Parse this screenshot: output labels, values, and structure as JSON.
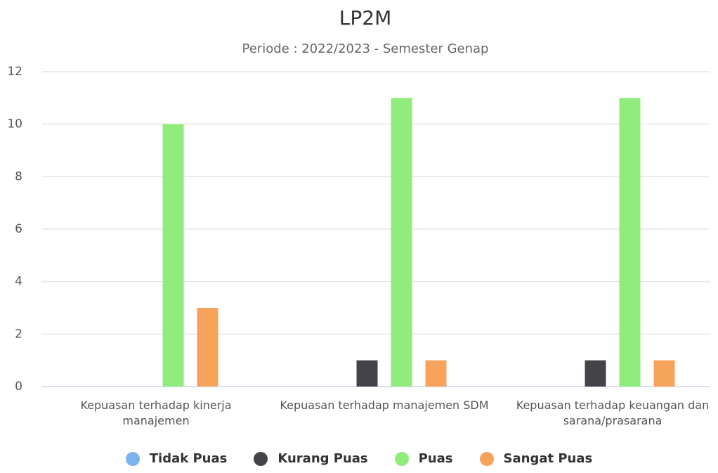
{
  "chart_data": {
    "type": "bar",
    "title": "LP2M",
    "subtitle": "Periode : 2022/2023 - Semester Genap",
    "categories": [
      "Kepuasan terhadap kinerja manajemen",
      "Kepuasan terhadap manajemen SDM",
      "Kepuasan terhadap keuangan dan sarana/prasarana"
    ],
    "series": [
      {
        "name": "Tidak Puas",
        "color": "#7cb5ec",
        "values": [
          0,
          0,
          0
        ]
      },
      {
        "name": "Kurang Puas",
        "color": "#434348",
        "values": [
          0,
          1,
          1
        ]
      },
      {
        "name": "Puas",
        "color": "#90ed7d",
        "values": [
          10,
          11,
          11
        ]
      },
      {
        "name": "Sangat Puas",
        "color": "#f7a35c",
        "values": [
          3,
          1,
          1
        ]
      }
    ],
    "ylim": [
      0,
      12
    ],
    "yticks": [
      0,
      2,
      4,
      6,
      8,
      10,
      12
    ],
    "grid": true,
    "legend": "bottom"
  }
}
